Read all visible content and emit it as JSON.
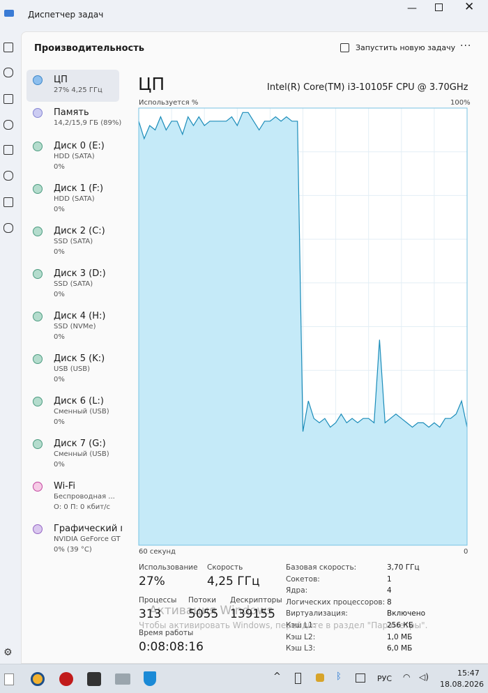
{
  "window": {
    "title": "Диспетчер задач"
  },
  "header": {
    "title": "Производительность",
    "run_task": "Запустить новую задачу"
  },
  "sidebar": [
    {
      "name": "ЦП",
      "detail": "27% 4,25 ГГц",
      "color": "#8dbfee",
      "border": "#3d86c8"
    },
    {
      "name": "Память",
      "detail": "14,2/15,9 ГБ (89%)",
      "color": "#ccccf2",
      "border": "#8585d2"
    },
    {
      "name": "Диск 0 (E:)",
      "detail": "HDD (SATA)",
      "value": "0%",
      "color": "#b4dccd",
      "border": "#4b9b7f"
    },
    {
      "name": "Диск 1 (F:)",
      "detail": "HDD (SATA)",
      "value": "0%",
      "color": "#b4dccd",
      "border": "#4b9b7f"
    },
    {
      "name": "Диск 2 (C:)",
      "detail": "SSD (SATA)",
      "value": "0%",
      "color": "#b4dccd",
      "border": "#4b9b7f"
    },
    {
      "name": "Диск 3 (D:)",
      "detail": "SSD (SATA)",
      "value": "0%",
      "color": "#b4dccd",
      "border": "#4b9b7f"
    },
    {
      "name": "Диск 4 (H:)",
      "detail": "SSD (NVMe)",
      "value": "0%",
      "color": "#b4dccd",
      "border": "#4b9b7f"
    },
    {
      "name": "Диск 5 (K:)",
      "detail": "USB (USB)",
      "value": "0%",
      "color": "#b4dccd",
      "border": "#4b9b7f"
    },
    {
      "name": "Диск 6 (L:)",
      "detail": "Сменный (USB)",
      "value": "0%",
      "color": "#b4dccd",
      "border": "#4b9b7f"
    },
    {
      "name": "Диск 7 (G:)",
      "detail": "Сменный (USB)",
      "value": "0%",
      "color": "#b4dccd",
      "border": "#4b9b7f"
    },
    {
      "name": "Wi-Fi",
      "detail": "Беспроводная ...",
      "value": "О: 0 П: 0 кбит/с",
      "color": "#f6cbe6",
      "border": "#c3449f"
    },
    {
      "name": "Графический п",
      "detail": "NVIDIA GeForce GT",
      "value": "0% (39 °C)",
      "color": "#dac8ef",
      "border": "#9565c4"
    }
  ],
  "cpu": {
    "title": "ЦП",
    "model": "Intel(R) Core(TM) i3-10105F CPU @ 3.70GHz",
    "graph_label": "Используется %",
    "graph_max_label": "100%",
    "x_left": "60 секунд",
    "x_right": "0",
    "ylim": [
      0,
      100
    ],
    "values": [
      97,
      93,
      96,
      95,
      98,
      95,
      97,
      97,
      94,
      98,
      96,
      98,
      96,
      97,
      97,
      97,
      97,
      98,
      96,
      99,
      99,
      97,
      95,
      97,
      97,
      98,
      97,
      98,
      97,
      97,
      26,
      33,
      29,
      28,
      29,
      27,
      28,
      30,
      28,
      29,
      28,
      29,
      29,
      28,
      47,
      28,
      29,
      30,
      29,
      28,
      27,
      28,
      28,
      27,
      28,
      27,
      29,
      29,
      30,
      33,
      27
    ]
  },
  "stats": [
    {
      "label": "Использование",
      "value": "27%"
    },
    {
      "label": "Скорость",
      "value": "4,25 ГГц"
    },
    {
      "label": "Процессы",
      "value": "313"
    },
    {
      "label": "Потоки",
      "value": "5055"
    },
    {
      "label": "Дескрипторы",
      "value": "139155"
    },
    {
      "label": "Время работы",
      "value": "0:08:08:16"
    }
  ],
  "specs": [
    [
      "Базовая скорость:",
      "3,70 ГГц"
    ],
    [
      "Сокетов:",
      "1"
    ],
    [
      "Ядра:",
      "4"
    ],
    [
      "Логических процессоров:",
      "8"
    ],
    [
      "Виртуализация:",
      "Включено"
    ],
    [
      "Кэш L1:",
      "256 КБ"
    ],
    [
      "Кэш L2:",
      "1,0 МБ"
    ],
    [
      "Кэш L3:",
      "6,0 МБ"
    ]
  ],
  "watermark": {
    "line1": "Активация Windows",
    "line2": "Чтобы активировать Windows, перейдите в раздел \"Параметры\"."
  },
  "taskbar": {
    "lang": "РУС",
    "time": "15:47",
    "date": "18.08.2026"
  }
}
